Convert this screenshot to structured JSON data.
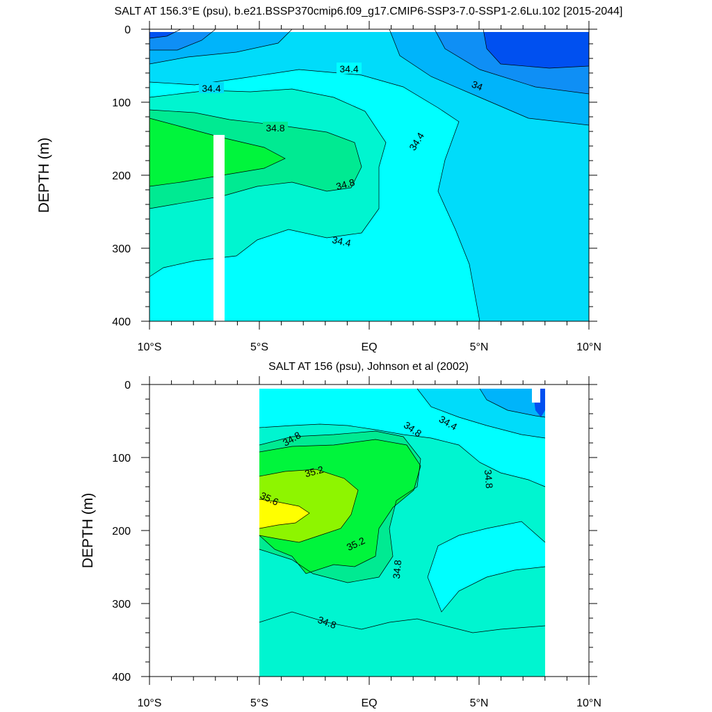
{
  "chart_data": [
    {
      "type": "contour",
      "title": "SALT AT 156.3°E (psu), b.e21.BSSP370cmip6.f09_g17.CMIP6-SSP3-7.0-SSP1-2.6Lu.102 [2015-2044]",
      "ylabel": "DEPTH (m)",
      "xlabel": "",
      "xlim": [
        -10,
        10
      ],
      "ylim": [
        400,
        0
      ],
      "x_ticks": [
        -10,
        -5,
        0,
        5,
        10
      ],
      "x_tick_labels": [
        "10°S",
        "5°S",
        "EQ",
        "5°N",
        "10°N"
      ],
      "y_ticks": [
        0,
        100,
        200,
        300,
        400
      ],
      "y_tick_labels": [
        "0",
        "100",
        "200",
        "300",
        "400"
      ],
      "contour_labels": [
        "34.4",
        "34.4",
        "34",
        "34.8",
        "34.4",
        "34.8",
        "34.4"
      ],
      "colors": {
        "band_lt_33.8": "#0050f0",
        "band_33.8_34.0": "#0f8ff5",
        "band_34.0_34.2": "#00b4fa",
        "band_34.2_34.4": "#00dcfa",
        "band_34.4_34.6": "#00ffff",
        "band_34.6_34.8": "#00f5d0",
        "band_34.8_35.0": "#00ea92",
        "band_gt_35.0": "#00f53c"
      }
    },
    {
      "type": "contour",
      "title": "SALT AT 156 (psu), Johnson et al (2002)",
      "ylabel": "DEPTH (m)",
      "xlabel": "",
      "xlim": [
        -10,
        10
      ],
      "ylim": [
        400,
        0
      ],
      "x_ticks": [
        -10,
        -5,
        0,
        5,
        10
      ],
      "x_tick_labels": [
        "10°S",
        "5°S",
        "EQ",
        "5°N",
        "10°N"
      ],
      "y_ticks": [
        0,
        100,
        200,
        300,
        400
      ],
      "y_tick_labels": [
        "0",
        "100",
        "200",
        "300",
        "400"
      ],
      "data_extent_x": [
        -5,
        8
      ],
      "contour_labels": [
        "34.8",
        "34.8",
        "34.4",
        "35.2",
        "34.8",
        "35.6",
        "35.2",
        "34.8",
        "34.8"
      ],
      "colors": {
        "band_lt_34.2": "#0050f0",
        "band_34.2_34.4": "#00b4fa",
        "band_34.4_34.6": "#00dcfa",
        "band_34.6_34.8": "#00ffff",
        "band_34.8_35.0": "#00f5d0",
        "band_35.0_35.2": "#00ea92",
        "band_35.2_35.4": "#00f53c",
        "band_35.4_35.6": "#8ef500",
        "band_gt_35.6": "#ffff00"
      }
    }
  ]
}
